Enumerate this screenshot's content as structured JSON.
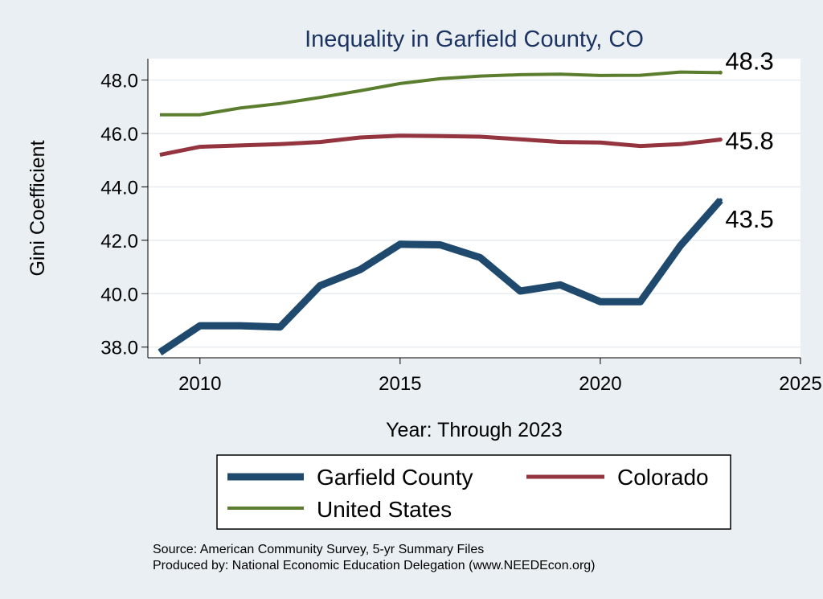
{
  "chart_data": {
    "type": "line",
    "title": "Inequality in Garfield County, CO",
    "xlabel": "Year: Through 2023",
    "ylabel": "Gini Coefficient",
    "xlim": [
      2008.7,
      2025
    ],
    "ylim": [
      37.6,
      48.8
    ],
    "xticks": [
      2010,
      2015,
      2020,
      2025
    ],
    "yticks": [
      38.0,
      40.0,
      42.0,
      44.0,
      46.0,
      48.0
    ],
    "ytick_labels": [
      "38.0",
      "40.0",
      "42.0",
      "44.0",
      "46.0",
      "48.0"
    ],
    "grid": true,
    "x": [
      2009,
      2010,
      2011,
      2012,
      2013,
      2014,
      2015,
      2016,
      2017,
      2018,
      2019,
      2020,
      2021,
      2022,
      2023
    ],
    "series": [
      {
        "name": "Garfield County",
        "color": "#1f4a6e",
        "values": [
          37.8,
          38.8,
          38.8,
          38.75,
          40.3,
          40.9,
          41.85,
          41.83,
          41.35,
          40.1,
          40.33,
          39.7,
          39.7,
          41.8,
          43.5
        ],
        "end_label": "43.5"
      },
      {
        "name": "Colorado",
        "color": "#93343f",
        "values": [
          45.2,
          45.5,
          45.55,
          45.6,
          45.68,
          45.85,
          45.92,
          45.9,
          45.88,
          45.78,
          45.68,
          45.66,
          45.53,
          45.6,
          45.77
        ],
        "end_label": "45.8"
      },
      {
        "name": "United States",
        "color": "#5a7d2e",
        "values": [
          46.7,
          46.7,
          46.95,
          47.12,
          47.35,
          47.6,
          47.87,
          48.05,
          48.15,
          48.2,
          48.22,
          48.17,
          48.18,
          48.3,
          48.28
        ],
        "end_label": "48.3"
      }
    ],
    "legend": {
      "position": "bottom",
      "entries": [
        "Garfield County",
        "Colorado",
        "United States"
      ]
    },
    "notes": [
      "Source: American Community Survey, 5-yr Summary Files",
      "Produced by: National Economic Education Delegation (www.NEEDEcon.org)"
    ]
  }
}
